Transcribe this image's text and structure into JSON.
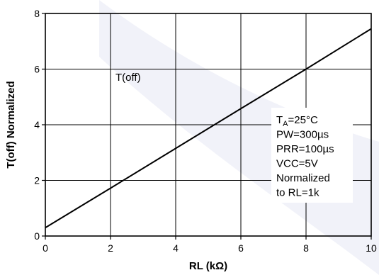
{
  "chart_data": {
    "type": "line",
    "xlabel": "RL (kΩ)",
    "ylabel": "T(off) Normalized",
    "xlim": [
      0,
      10
    ],
    "ylim": [
      0,
      8
    ],
    "x_ticks": [
      0,
      2,
      4,
      6,
      8,
      10
    ],
    "y_ticks": [
      0,
      2,
      4,
      6,
      8
    ],
    "x_tick_labels": [
      "0",
      "2",
      "4",
      "6",
      "8",
      "10"
    ],
    "y_tick_labels": [
      "0",
      "2",
      "4",
      "6",
      "8"
    ],
    "grid": true,
    "series": [
      {
        "name": "T(off)",
        "x": [
          0,
          2,
          4,
          6,
          8,
          10
        ],
        "y": [
          0.3,
          1.72,
          3.15,
          4.58,
          6.0,
          7.45
        ]
      }
    ],
    "annotation": {
      "lines": [
        "TA=25°C",
        "PW=300µs",
        "PRR=100µs",
        "VCC=5V",
        "Normalized",
        "to RL=1k"
      ]
    },
    "colors": {
      "line": "#000000",
      "grid": "#000000",
      "watermark": "#eef0f8"
    }
  }
}
